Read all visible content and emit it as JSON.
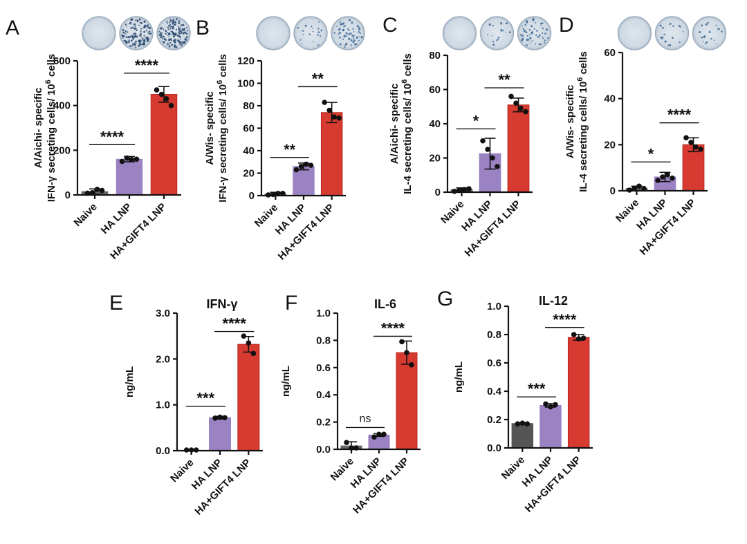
{
  "figure": {
    "colors": {
      "naive_ef": "#555555",
      "ha_lnp": "#9b82c2",
      "ha_gift4": "#d63a30",
      "point": "#111111"
    },
    "chart_data": [
      {
        "panel": "A",
        "type": "bar",
        "title": "",
        "ylabel": "A/Aichi- specific",
        "ylabel2": {
          "pre": "IFN-γ secreting cells/ 10",
          "sup": "6",
          "post": " cells"
        },
        "ylim": [
          0,
          600
        ],
        "ticks": [
          0,
          200,
          400,
          600
        ],
        "tick_labels": [
          "0",
          "200",
          "400",
          "600"
        ],
        "categories": [
          "Naive",
          "HA LNP",
          "HA+GIFT4 LNP"
        ],
        "values": [
          15,
          160,
          450
        ],
        "errors": [
          12,
          12,
          35
        ],
        "points": [
          [
            8,
            10,
            25,
            20
          ],
          [
            150,
            165,
            158,
            160
          ],
          [
            470,
            450,
            430,
            400
          ]
        ],
        "significance": [
          {
            "from": 0,
            "to": 1,
            "label": "****",
            "y": 225
          },
          {
            "from": 1,
            "to": 2,
            "label": "****",
            "y": 545
          }
        ],
        "plate_densities": [
          0,
          3,
          3
        ]
      },
      {
        "panel": "B",
        "type": "bar",
        "title": "",
        "ylabel": "A/Wis- specific",
        "ylabel2": {
          "pre": "IFN-γ secreting cells/ 10",
          "sup": "6",
          "post": " cells"
        },
        "ylim": [
          0,
          120
        ],
        "ticks": [
          0,
          20,
          40,
          60,
          80,
          100,
          120
        ],
        "tick_labels": [
          "0",
          "20",
          "40",
          "60",
          "80",
          "100",
          "120"
        ],
        "categories": [
          "Naive",
          "HA LNP",
          "HA+GIFT4 LNP"
        ],
        "values": [
          1.5,
          26,
          74
        ],
        "errors": [
          1.5,
          3,
          9
        ],
        "points": [
          [
            0,
            1,
            2,
            2
          ],
          [
            23,
            26,
            28,
            27
          ],
          [
            83,
            76,
            70,
            69
          ]
        ],
        "significance": [
          {
            "from": 0,
            "to": 1,
            "label": "**",
            "y": 34
          },
          {
            "from": 1,
            "to": 2,
            "label": "**",
            "y": 97
          }
        ],
        "plate_densities": [
          0,
          1,
          2
        ]
      },
      {
        "panel": "C",
        "type": "bar",
        "title": "",
        "ylabel": "A/Aichi- specific",
        "ylabel2": {
          "pre": "IL-4 secreting cells/ 10",
          "sup": "6",
          "post": " cells"
        },
        "ylim": [
          0,
          80
        ],
        "ticks": [
          0,
          20,
          40,
          60,
          80
        ],
        "tick_labels": [
          "0",
          "20",
          "40",
          "60",
          "80"
        ],
        "categories": [
          "Naive",
          "HA LNP",
          "HA+GIFT4 LNP"
        ],
        "values": [
          1.5,
          22.5,
          51
        ],
        "errors": [
          1,
          9,
          4
        ],
        "points": [
          [
            0.5,
            1,
            1.5,
            2
          ],
          [
            30,
            25,
            20,
            15
          ],
          [
            56,
            52,
            49,
            47
          ]
        ],
        "significance": [
          {
            "from": 0,
            "to": 1,
            "label": "*",
            "y": 37
          },
          {
            "from": 1,
            "to": 2,
            "label": "**",
            "y": 61
          }
        ],
        "plate_densities": [
          0,
          1,
          2
        ]
      },
      {
        "panel": "D",
        "type": "bar",
        "title": "",
        "ylabel": "A/Wis- specific",
        "ylabel2": {
          "pre": "IL-4 secreting cells/ 10",
          "sup": "6",
          "post": " cells"
        },
        "ylim": [
          0,
          60
        ],
        "ticks": [
          0,
          20,
          40,
          60
        ],
        "tick_labels": [
          "0",
          "20",
          "40",
          "60"
        ],
        "categories": [
          "Naive",
          "HA LNP",
          "HA+GIFT4 LNP"
        ],
        "values": [
          1,
          6,
          20
        ],
        "errors": [
          1,
          2,
          3
        ],
        "points": [
          [
            0,
            1,
            2,
            1
          ],
          [
            4.5,
            6,
            7,
            5.5
          ],
          [
            23,
            21,
            19,
            18
          ]
        ],
        "significance": [
          {
            "from": 0,
            "to": 1,
            "label": "*",
            "y": 12.5
          },
          {
            "from": 1,
            "to": 2,
            "label": "****",
            "y": 29.5
          }
        ],
        "plate_densities": [
          0,
          1,
          1
        ]
      },
      {
        "panel": "E",
        "type": "bar",
        "title": "IFN-γ",
        "ylabel": "ng/mL",
        "ylabel2": null,
        "ylim": [
          0,
          3.0
        ],
        "ticks": [
          0,
          1.0,
          2.0,
          3.0
        ],
        "tick_labels": [
          "0.0",
          "1.0",
          "2.0",
          "3.0"
        ],
        "categories": [
          "Naive",
          "HA LNP",
          "HA+GIFT4 LNP"
        ],
        "values": [
          0,
          0.72,
          2.32
        ],
        "errors": [
          0,
          0.03,
          0.17
        ],
        "points": [
          [
            0,
            0,
            0
          ],
          [
            0.71,
            0.73,
            0.72
          ],
          [
            2.5,
            2.35,
            2.12
          ]
        ],
        "significance": [
          {
            "from": 0,
            "to": 1,
            "label": "***",
            "y": 0.97
          },
          {
            "from": 1,
            "to": 2,
            "label": "****",
            "y": 2.6
          }
        ],
        "plate_densities": []
      },
      {
        "panel": "F",
        "type": "bar",
        "title": "IL-6",
        "ylabel": "ng/mL",
        "ylabel2": null,
        "ylim": [
          0,
          1.0
        ],
        "ticks": [
          0,
          0.2,
          0.4,
          0.6,
          0.8,
          1.0
        ],
        "tick_labels": [
          "0.0",
          "0.2",
          "0.4",
          "0.6",
          "0.8",
          "1.0"
        ],
        "categories": [
          "Naive",
          "HA LNP",
          "HA+GIFT4 LNP"
        ],
        "values": [
          0.025,
          0.105,
          0.71
        ],
        "errors": [
          0.03,
          0.01,
          0.085
        ],
        "points": [
          [
            0.05,
            0.01,
            0.01
          ],
          [
            0.09,
            0.11,
            0.11
          ],
          [
            0.79,
            0.71,
            0.62
          ]
        ],
        "significance": [
          {
            "from": 0,
            "to": 1,
            "label": "ns",
            "y": 0.16
          },
          {
            "from": 1,
            "to": 2,
            "label": "****",
            "y": 0.83
          }
        ],
        "plate_densities": []
      },
      {
        "panel": "G",
        "type": "bar",
        "title": "IL-12",
        "ylabel": "ng/mL",
        "ylabel2": null,
        "ylim": [
          0,
          1.0
        ],
        "ticks": [
          0,
          0.2,
          0.4,
          0.6,
          0.8,
          1.0
        ],
        "tick_labels": [
          "0.0",
          "0.2",
          "0.4",
          "0.6",
          "0.8",
          "1.0"
        ],
        "categories": [
          "Naive",
          "HA LNP",
          "HA+GIFT4 LNP"
        ],
        "values": [
          0.172,
          0.3,
          0.78
        ],
        "errors": [
          0.005,
          0.012,
          0.02
        ],
        "points": [
          [
            0.17,
            0.175,
            0.17
          ],
          [
            0.31,
            0.29,
            0.305
          ],
          [
            0.8,
            0.77,
            0.775
          ]
        ],
        "significance": [
          {
            "from": 0,
            "to": 1,
            "label": "***",
            "y": 0.36
          },
          {
            "from": 1,
            "to": 2,
            "label": "****",
            "y": 0.85
          }
        ],
        "plate_densities": []
      }
    ]
  }
}
